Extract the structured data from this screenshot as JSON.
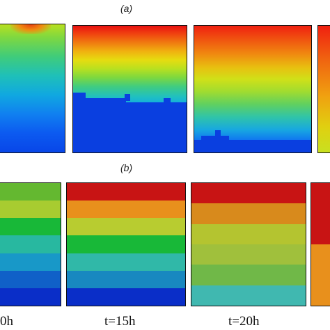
{
  "panels": {
    "a": {
      "label": "(a)"
    },
    "b": {
      "label": "(b)"
    }
  },
  "row_a_frames": [
    {
      "name": "frame-a-1"
    },
    {
      "name": "frame-a-2"
    },
    {
      "name": "frame-a-3"
    },
    {
      "name": "frame-a-4"
    }
  ],
  "row_b_frames": [
    {
      "name": "frame-b-1",
      "label": "0h",
      "bands": [
        "#64b830",
        "#a8cc30",
        "#18b838",
        "#28b8a0",
        "#1898c8",
        "#1060c8",
        "#0a2ec8"
      ]
    },
    {
      "name": "frame-b-2",
      "label": "t=15h",
      "bands": [
        "#c81414",
        "#e8901c",
        "#b8cc30",
        "#18b838",
        "#30b8a8",
        "#1888c0",
        "#0a2ec8"
      ]
    },
    {
      "name": "frame-b-3",
      "label": "t=20h",
      "bands": [
        "#c81414",
        "#d88a1c",
        "#b4c430",
        "#a0c03c",
        "#70b848",
        "#40b8b0"
      ]
    },
    {
      "name": "frame-b-4",
      "label": "",
      "bands": [
        "#c81414",
        "#e8901c"
      ]
    }
  ],
  "colors": {
    "cold": "#0846e6",
    "hot": "#e81010"
  }
}
